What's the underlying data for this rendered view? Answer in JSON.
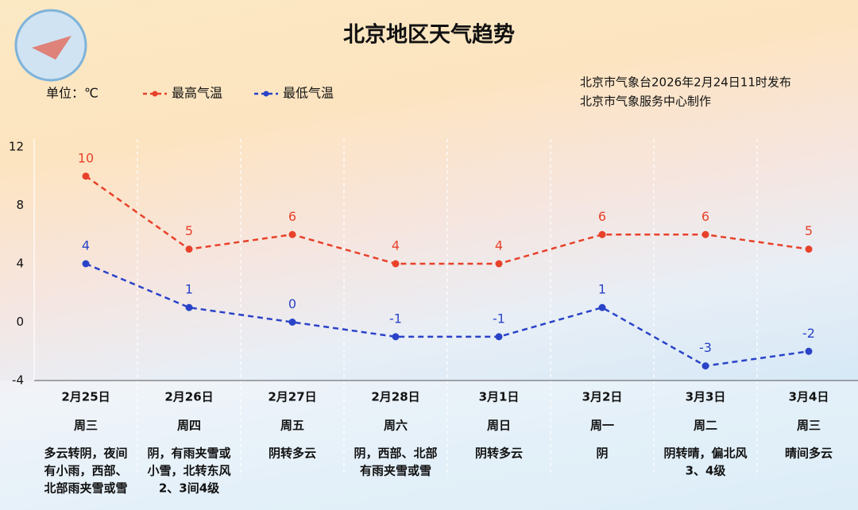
{
  "chart_data": {
    "type": "line",
    "title": "北京地区天气趋势",
    "unit_label": "单位：℃",
    "source_lines": [
      "北京市气象台2026年2月24日11时发布",
      "北京市气象服务中心制作"
    ],
    "categories": [
      "2月25日",
      "2月26日",
      "2月27日",
      "2月28日",
      "3月1日",
      "3月2日",
      "3月3日",
      "3月4日"
    ],
    "weekdays": [
      "周三",
      "周四",
      "周五",
      "周六",
      "周日",
      "周一",
      "周二",
      "周三"
    ],
    "weather": [
      [
        "多云转阴，夜间",
        "有小雨，西部、",
        "北部雨夹雪或雪"
      ],
      [
        "阴，有雨夹雪或",
        "小雪，北转东风",
        "2、3间4级"
      ],
      [
        "阴转多云"
      ],
      [
        "阴，西部、北部",
        "有雨夹雪或雪"
      ],
      [
        "阴转多云"
      ],
      [
        "阴"
      ],
      [
        "阴转晴，偏北风",
        "3、4级"
      ],
      [
        "晴间多云"
      ]
    ],
    "series": [
      {
        "name": "最高气温",
        "color": "#e8412a",
        "values": [
          10,
          5,
          6,
          4,
          4,
          6,
          6,
          5
        ]
      },
      {
        "name": "最低气温",
        "color": "#2a43c8",
        "values": [
          4,
          1,
          0,
          -1,
          -1,
          1,
          -3,
          -2
        ]
      }
    ],
    "ylim": [
      -4,
      12
    ],
    "yticks": [
      -4,
      0,
      4,
      8,
      12
    ]
  }
}
